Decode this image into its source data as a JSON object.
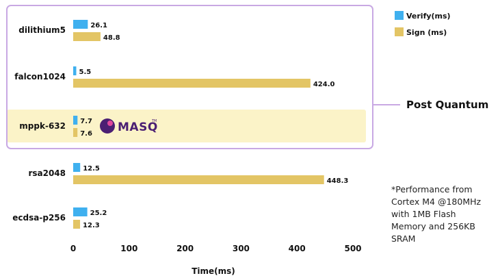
{
  "chart_data": {
    "type": "bar",
    "orientation": "horizontal",
    "categories": [
      "dilithium5",
      "falcon1024",
      "mppk-632",
      "rsa2048",
      "ecdsa-p256"
    ],
    "series": [
      {
        "name": "Verify(ms)",
        "color": "#3fb0ef",
        "values": [
          26.1,
          5.5,
          7.7,
          12.5,
          25.2
        ]
      },
      {
        "name": "Sign (ms)",
        "color": "#e3c565",
        "values": [
          48.8,
          424.0,
          7.6,
          448.3,
          12.3
        ]
      }
    ],
    "value_labels": {
      "Verify(ms)": [
        "26.1",
        "5.5",
        "7.7",
        "12.5",
        "25.2"
      ],
      "Sign (ms)": [
        "48.8",
        "424.0",
        "7.6",
        "448.3",
        "12.3"
      ]
    },
    "xlabel": "Time(ms)",
    "xlim": [
      0,
      520
    ],
    "xticks": [
      0,
      100,
      200,
      300,
      400,
      500
    ],
    "tick_labels": [
      "0",
      "100",
      "200",
      "300",
      "400",
      "500"
    ],
    "grid": "vertical",
    "legend_position": "top-right",
    "group_annotation": {
      "label": "Post Quantum",
      "categories": [
        "dilithium5",
        "falcon1024",
        "mppk-632"
      ],
      "border_color": "#c8a8e3"
    },
    "highlight": {
      "category": "mppk-632",
      "color": "#fbf3c8"
    },
    "logo": {
      "text": "MASQ",
      "superscript": "TM",
      "color": "#4b1f73"
    },
    "footnote": "*Performance from\nCortex M4 @180MHz\nwith 1MB Flash\nMemory and 256KB\nSRAM"
  }
}
